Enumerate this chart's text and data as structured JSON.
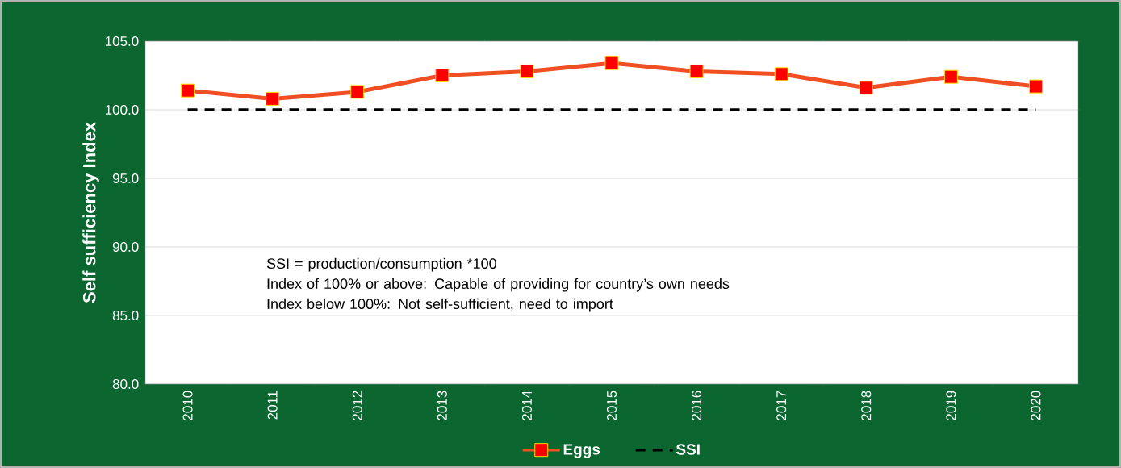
{
  "chart_data": {
    "type": "line",
    "ylabel": "Self sufficiency Index",
    "categories": [
      "2010",
      "2011",
      "2012",
      "2013",
      "2014",
      "2015",
      "2016",
      "2017",
      "2018",
      "2019",
      "2020"
    ],
    "series": [
      {
        "name": "Eggs",
        "color": "#f04e23",
        "marker": "square",
        "line_style": "solid",
        "values": [
          101.4,
          100.8,
          101.3,
          102.5,
          102.8,
          103.4,
          102.8,
          102.6,
          101.6,
          102.4,
          101.7
        ]
      },
      {
        "name": "SSI",
        "color": "#000000",
        "marker": "none",
        "line_style": "dashed",
        "values": [
          100,
          100,
          100,
          100,
          100,
          100,
          100,
          100,
          100,
          100,
          100
        ]
      }
    ],
    "ylim": [
      80,
      105
    ],
    "yticks": [
      {
        "value": 80,
        "label": "80.0"
      },
      {
        "value": 85,
        "label": "85.0"
      },
      {
        "value": 90,
        "label": "90.0"
      },
      {
        "value": 95,
        "label": "95.0"
      },
      {
        "value": 100,
        "label": "100.0"
      },
      {
        "value": 105,
        "label": "105.0"
      }
    ],
    "grid": "y",
    "legend": "bottom",
    "annotations": [
      "SSI =  production/consumption *100",
      "Index of 100% or above: Capable of providing for country’s own needs",
      "Index below 100%: Not self-sufficient, need to import"
    ]
  }
}
